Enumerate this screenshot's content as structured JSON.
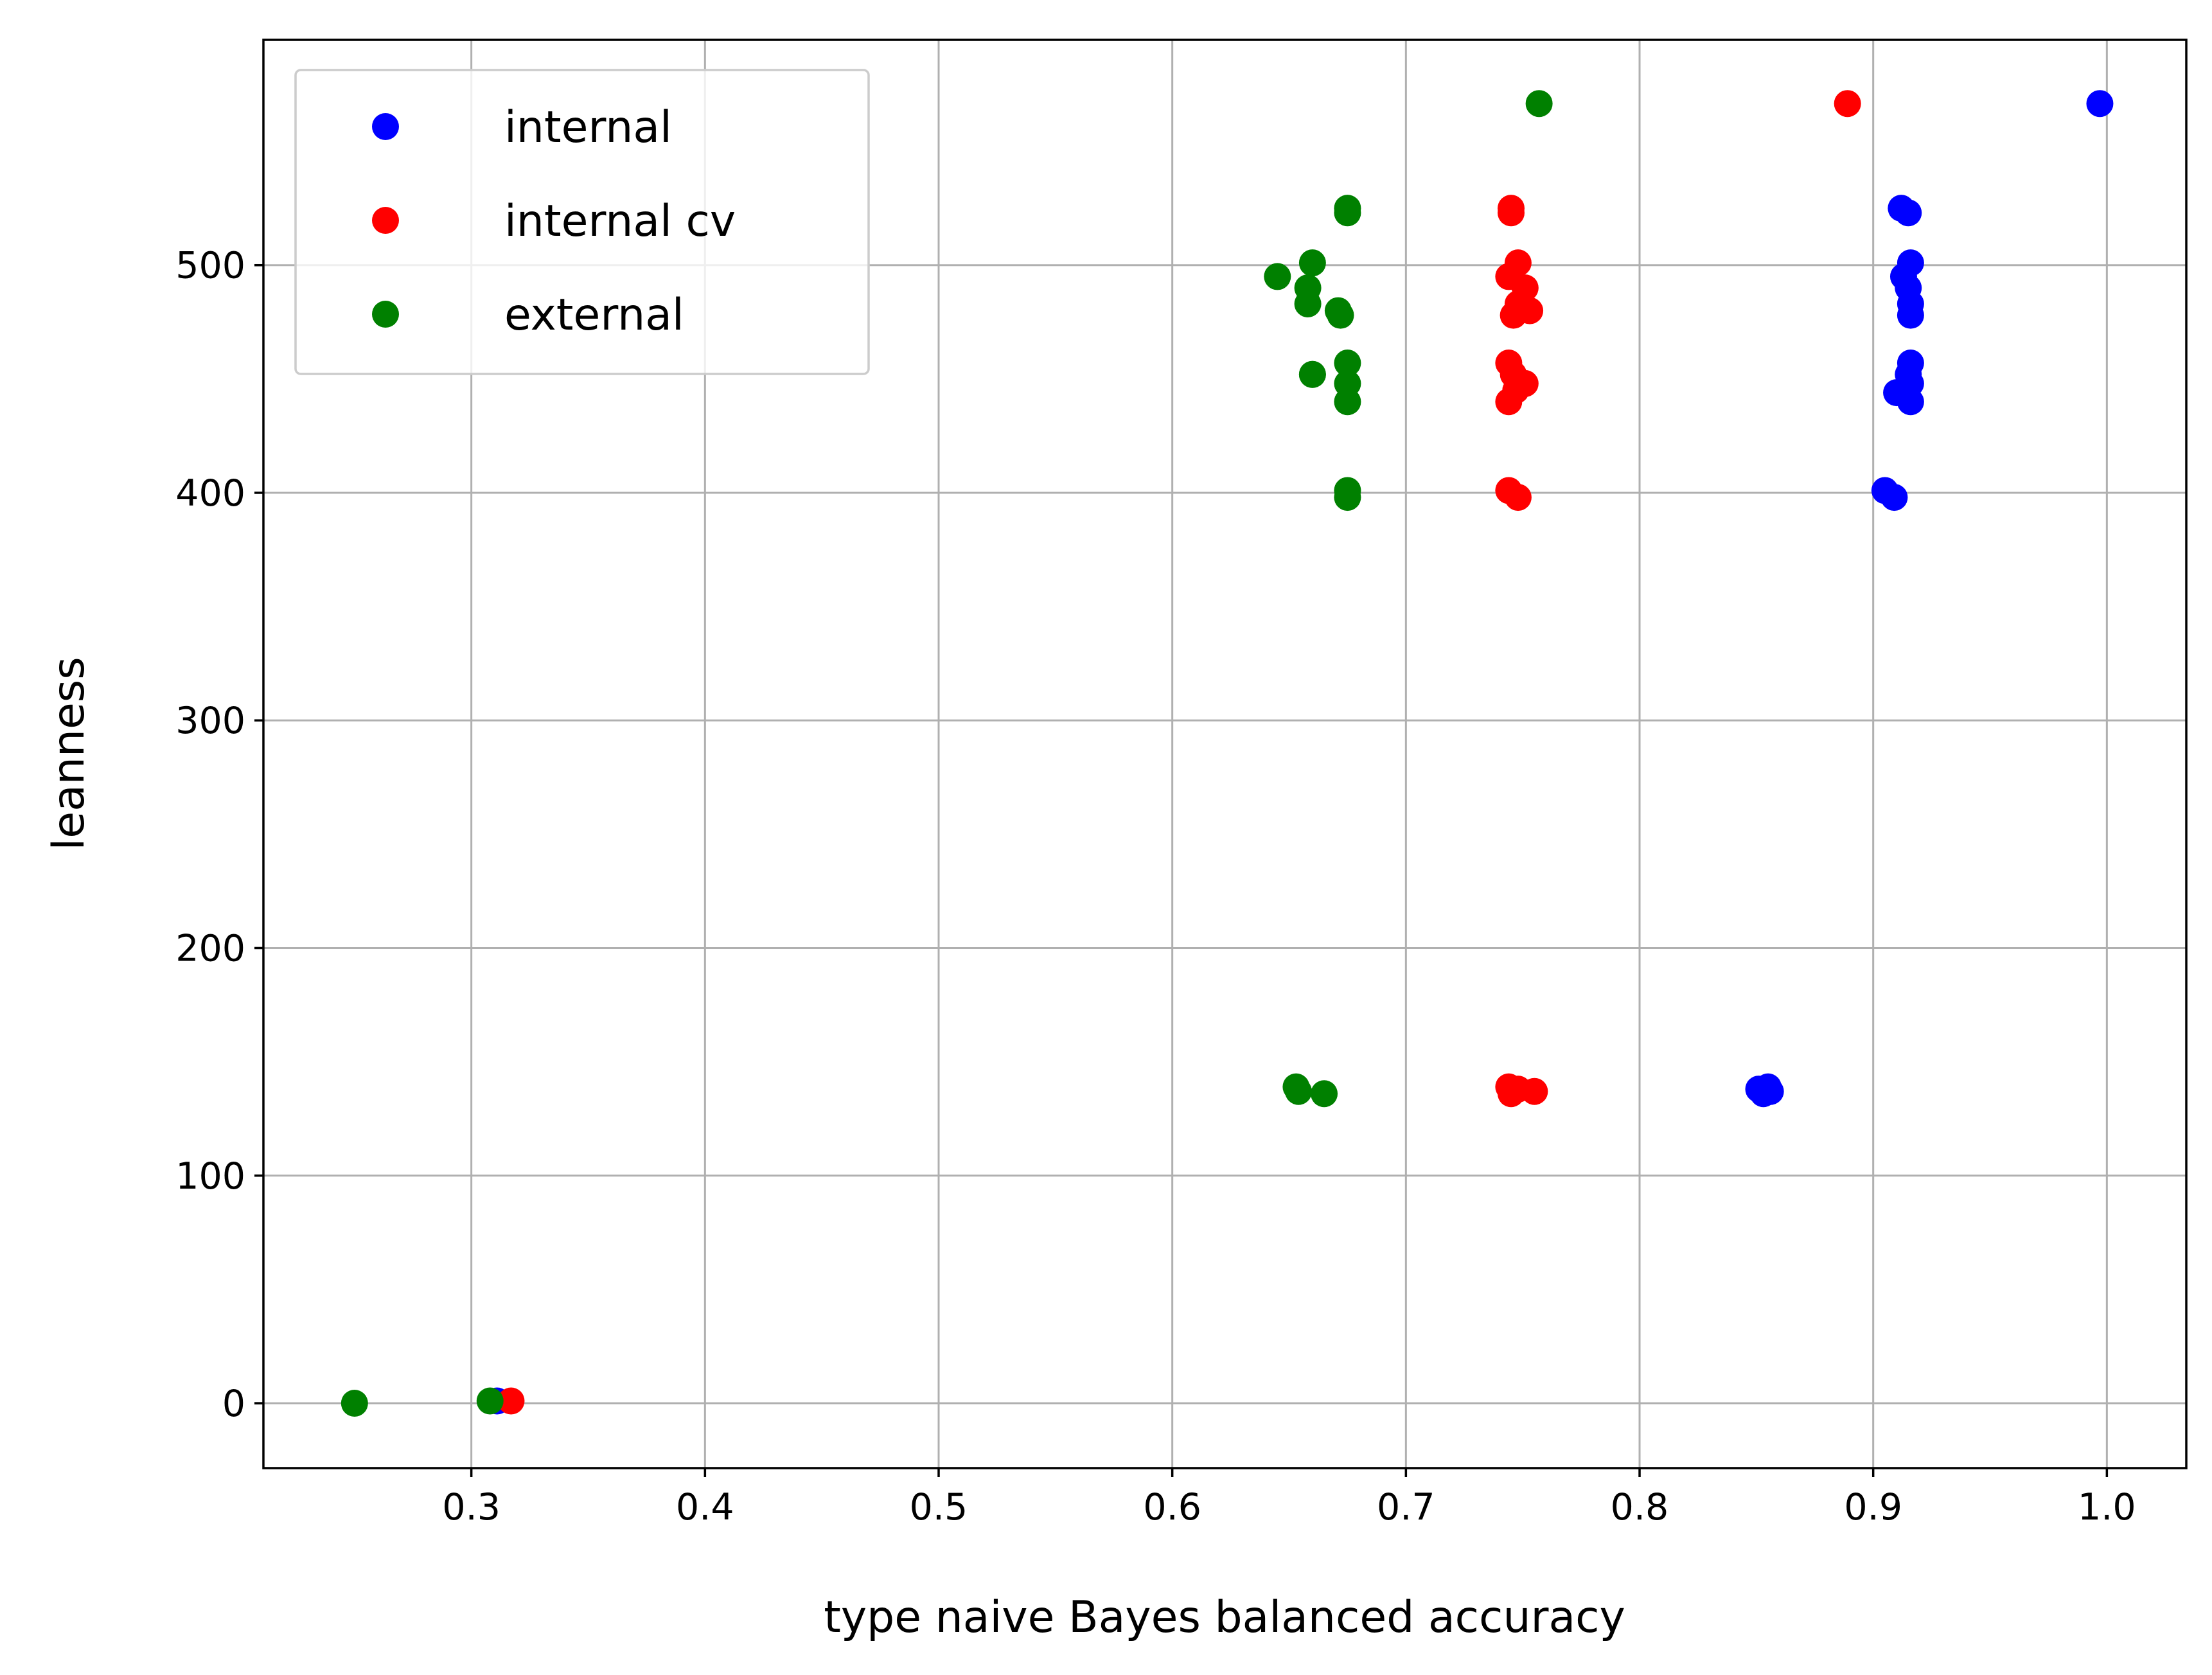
{
  "chart_data": {
    "type": "scatter",
    "title": "",
    "xlabel": "type naive Bayes balanced accuracy",
    "ylabel": "leanness",
    "xlim": [
      0.211,
      1.034
    ],
    "ylim": [
      -28.5,
      599
    ],
    "xticks": [
      0.3,
      0.4,
      0.5,
      0.6,
      0.7,
      0.8,
      0.9,
      1.0
    ],
    "xtick_labels": [
      "0.3",
      "0.4",
      "0.5",
      "0.6",
      "0.7",
      "0.8",
      "0.9",
      "1.0"
    ],
    "yticks": [
      0,
      100,
      200,
      300,
      400,
      500
    ],
    "ytick_labels": [
      "0",
      "100",
      "200",
      "300",
      "400",
      "500"
    ],
    "grid": true,
    "legend_position": "top-left",
    "series": [
      {
        "name": "internal",
        "color": "#0000ff",
        "points": [
          [
            0.997,
            571
          ],
          [
            0.912,
            525
          ],
          [
            0.915,
            523
          ],
          [
            0.916,
            501
          ],
          [
            0.913,
            495
          ],
          [
            0.915,
            490
          ],
          [
            0.916,
            483
          ],
          [
            0.916,
            478
          ],
          [
            0.916,
            457
          ],
          [
            0.915,
            452
          ],
          [
            0.916,
            448
          ],
          [
            0.914,
            445
          ],
          [
            0.91,
            444
          ],
          [
            0.916,
            440
          ],
          [
            0.905,
            401
          ],
          [
            0.909,
            398
          ],
          [
            0.851,
            138
          ],
          [
            0.855,
            139
          ],
          [
            0.853,
            136
          ],
          [
            0.856,
            137
          ],
          [
            0.311,
            1
          ]
        ]
      },
      {
        "name": "internal cv",
        "color": "#ff0000",
        "points": [
          [
            0.889,
            571
          ],
          [
            0.745,
            525
          ],
          [
            0.745,
            523
          ],
          [
            0.748,
            501
          ],
          [
            0.744,
            495
          ],
          [
            0.751,
            490
          ],
          [
            0.748,
            483
          ],
          [
            0.746,
            478
          ],
          [
            0.753,
            480
          ],
          [
            0.744,
            457
          ],
          [
            0.746,
            452
          ],
          [
            0.751,
            448
          ],
          [
            0.747,
            445
          ],
          [
            0.744,
            440
          ],
          [
            0.744,
            401
          ],
          [
            0.748,
            398
          ],
          [
            0.744,
            139
          ],
          [
            0.748,
            138
          ],
          [
            0.745,
            136
          ],
          [
            0.755,
            137
          ],
          [
            0.317,
            1
          ]
        ]
      },
      {
        "name": "external",
        "color": "#008000",
        "points": [
          [
            0.757,
            571
          ],
          [
            0.675,
            525
          ],
          [
            0.675,
            523
          ],
          [
            0.66,
            501
          ],
          [
            0.645,
            495
          ],
          [
            0.658,
            490
          ],
          [
            0.658,
            483
          ],
          [
            0.672,
            478
          ],
          [
            0.671,
            480
          ],
          [
            0.675,
            457
          ],
          [
            0.66,
            452
          ],
          [
            0.675,
            448
          ],
          [
            0.66,
            452
          ],
          [
            0.675,
            440
          ],
          [
            0.675,
            401
          ],
          [
            0.675,
            398
          ],
          [
            0.653,
            139
          ],
          [
            0.654,
            137
          ],
          [
            0.665,
            136
          ],
          [
            0.25,
            0
          ],
          [
            0.308,
            1
          ]
        ]
      }
    ]
  }
}
